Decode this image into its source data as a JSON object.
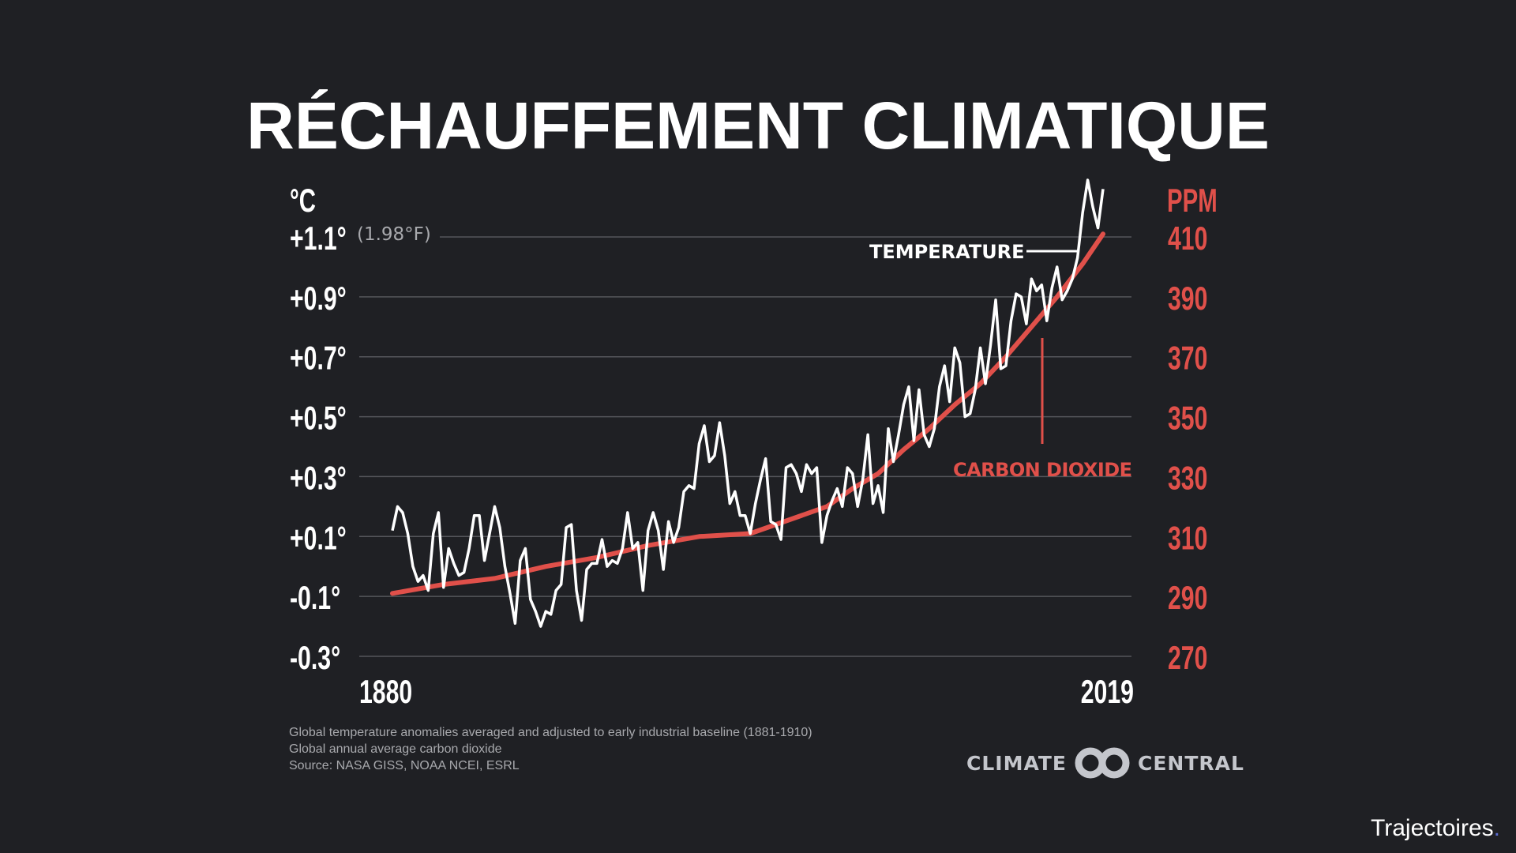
{
  "title": "RÉCHAUFFEMENT CLIMATIQUE",
  "chart_data": {
    "type": "line",
    "title": "RÉCHAUFFEMENT CLIMATIQUE",
    "left_axis_unit": "°C",
    "right_axis_unit": "PPM",
    "fahrenheit_note": "(1.98°F)",
    "xlim": [
      1880,
      2019
    ],
    "x_tick_labels": [
      "1880",
      "2019"
    ],
    "ylim_left": [
      -0.3,
      1.1
    ],
    "ylim_right": [
      270,
      410
    ],
    "left_tick_labels": [
      "+1.1°",
      "+0.9°",
      "+0.7°",
      "+0.5°",
      "+0.3°",
      "+0.1°",
      "-0.1°",
      "-0.3°"
    ],
    "left_tick_values": [
      1.1,
      0.9,
      0.7,
      0.5,
      0.3,
      0.1,
      -0.1,
      -0.3
    ],
    "right_tick_labels": [
      "410",
      "390",
      "370",
      "350",
      "330",
      "310",
      "290",
      "270"
    ],
    "grid": true,
    "colors": {
      "temperature": "#ffffff",
      "co2": "#e0504a",
      "background": "#1f2024",
      "grid": "#55565b"
    },
    "series": [
      {
        "name": "TEMPERATURE",
        "axis": "left",
        "x_start": 1880,
        "values": [
          0.12,
          0.2,
          0.18,
          0.11,
          0.0,
          -0.05,
          -0.03,
          -0.08,
          0.11,
          0.18,
          -0.07,
          0.06,
          0.01,
          -0.03,
          -0.02,
          0.06,
          0.17,
          0.17,
          0.02,
          0.11,
          0.2,
          0.13,
          0.0,
          -0.09,
          -0.19,
          0.02,
          0.06,
          -0.11,
          -0.15,
          -0.2,
          -0.15,
          -0.16,
          -0.08,
          -0.06,
          0.13,
          0.14,
          -0.08,
          -0.18,
          -0.01,
          0.01,
          0.01,
          0.09,
          0.0,
          0.02,
          0.01,
          0.06,
          0.18,
          0.06,
          0.08,
          -0.08,
          0.12,
          0.18,
          0.12,
          -0.01,
          0.15,
          0.08,
          0.13,
          0.25,
          0.27,
          0.26,
          0.41,
          0.47,
          0.35,
          0.37,
          0.48,
          0.37,
          0.21,
          0.25,
          0.17,
          0.17,
          0.11,
          0.21,
          0.29,
          0.36,
          0.15,
          0.14,
          0.09,
          0.33,
          0.34,
          0.31,
          0.25,
          0.34,
          0.31,
          0.33,
          0.08,
          0.17,
          0.22,
          0.26,
          0.2,
          0.33,
          0.31,
          0.2,
          0.29,
          0.44,
          0.21,
          0.27,
          0.18,
          0.46,
          0.35,
          0.44,
          0.54,
          0.6,
          0.42,
          0.59,
          0.44,
          0.4,
          0.46,
          0.6,
          0.67,
          0.55,
          0.73,
          0.68,
          0.5,
          0.51,
          0.59,
          0.73,
          0.61,
          0.74,
          0.89,
          0.66,
          0.67,
          0.82,
          0.91,
          0.9,
          0.81,
          0.96,
          0.92,
          0.94,
          0.82,
          0.93,
          1.0,
          0.89,
          0.92,
          0.96,
          1.03,
          1.18,
          1.29,
          1.2,
          1.13,
          1.26
        ]
      },
      {
        "name": "CARBON DIOXIDE",
        "axis": "right",
        "x": [
          1880,
          1890,
          1900,
          1910,
          1920,
          1930,
          1940,
          1950,
          1955,
          1960,
          1965,
          1970,
          1975,
          1980,
          1985,
          1990,
          1995,
          2000,
          2005,
          2010,
          2015,
          2019
        ],
        "values": [
          291,
          294,
          296,
          300,
          303,
          307,
          310,
          311,
          314,
          317,
          320,
          326,
          331,
          339,
          346,
          354,
          361,
          370,
          380,
          390,
          401,
          411
        ]
      }
    ]
  },
  "footnotes": [
    "Global temperature anomalies averaged and adjusted to early industrial baseline (1881-1910)",
    "Global annual average carbon dioxide",
    "Source: NASA GISS, NOAA NCEI, ESRL"
  ],
  "logo": {
    "left": "CLIMATE",
    "right": "CENTRAL"
  },
  "brand": {
    "name": "Trajectoires",
    "dot": "."
  }
}
